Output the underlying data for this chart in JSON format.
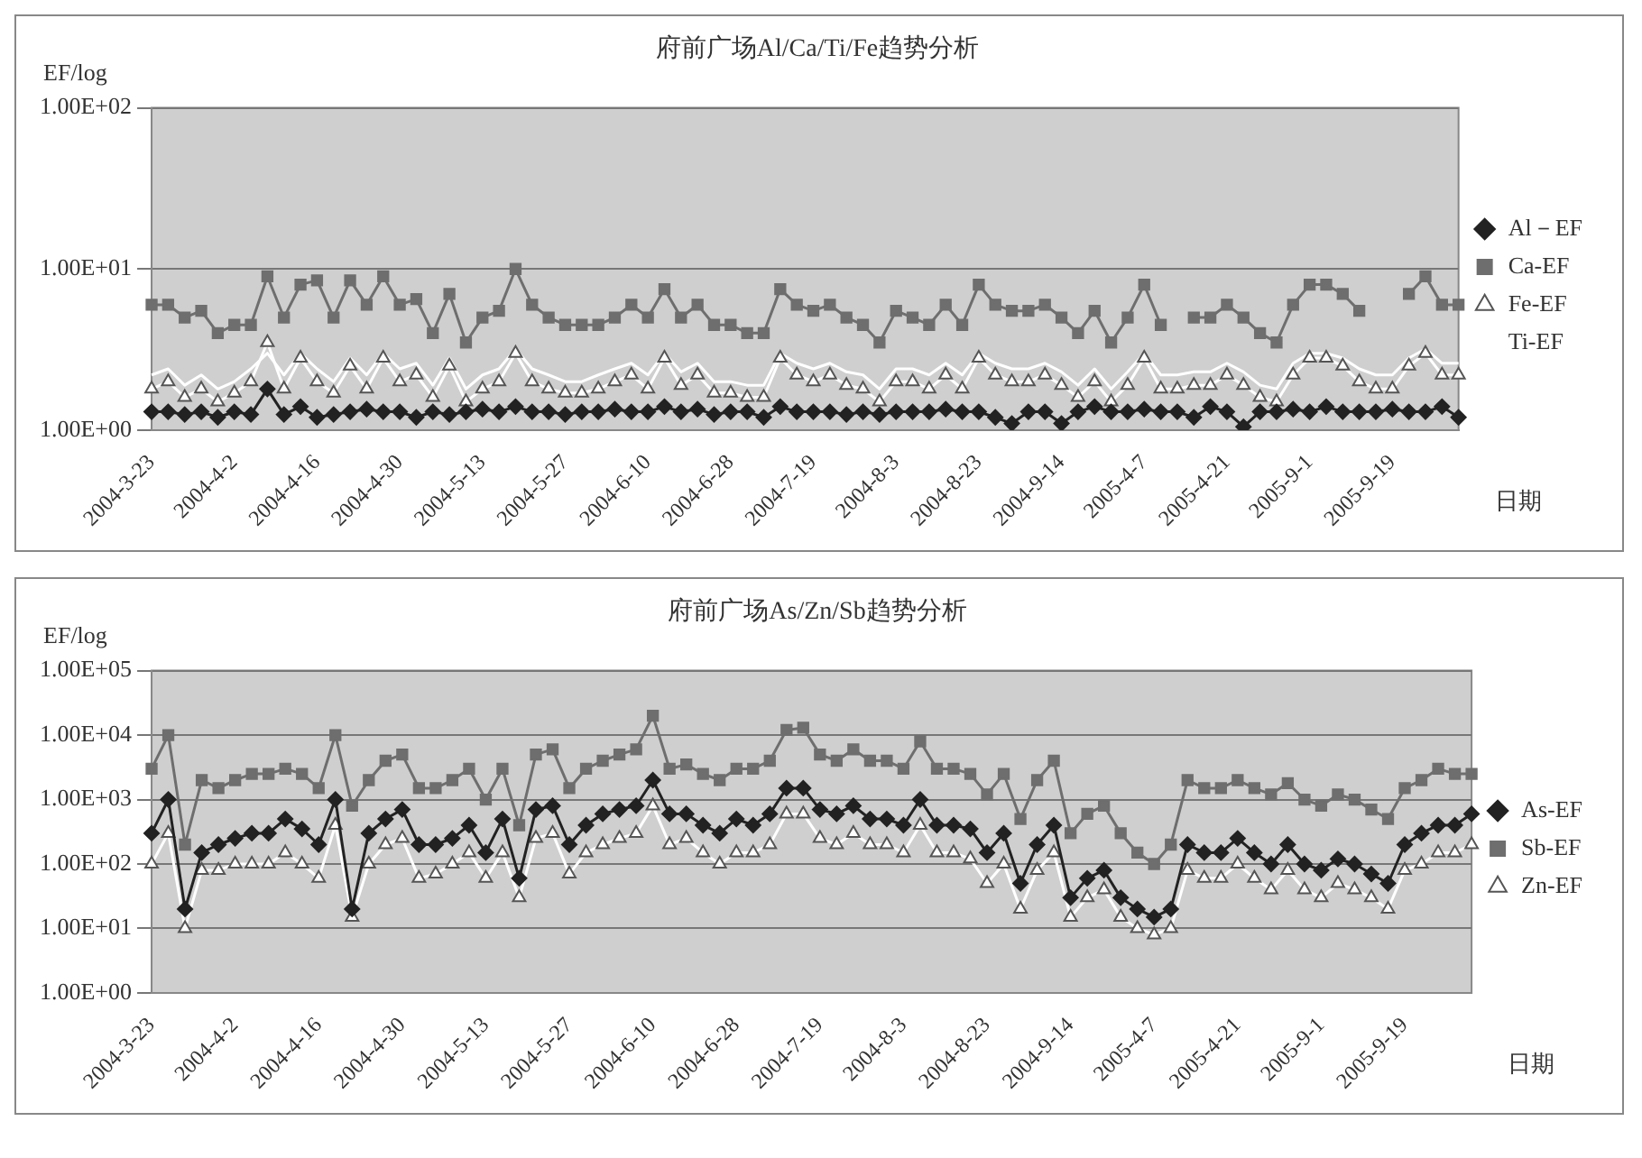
{
  "chart_data": [
    {
      "type": "line",
      "title": "府前广场Al/Ca/Ti/Fe趋势分析",
      "ylabel": "EF/log",
      "xlabel": "日期",
      "log": "y",
      "grid": "y",
      "legend": "right",
      "categories": [
        "2004-3-23",
        null,
        null,
        null,
        null,
        "2004-4-2",
        null,
        null,
        null,
        null,
        "2004-4-16",
        null,
        null,
        null,
        null,
        "2004-4-30",
        null,
        null,
        null,
        null,
        "2004-5-13",
        null,
        null,
        null,
        null,
        "2004-5-27",
        null,
        null,
        null,
        null,
        "2004-6-10",
        null,
        null,
        null,
        null,
        "2004-6-28",
        null,
        null,
        null,
        null,
        "2004-7-19",
        null,
        null,
        null,
        null,
        "2004-8-3",
        null,
        null,
        null,
        null,
        "2004-8-23",
        null,
        null,
        null,
        null,
        "2004-9-14",
        null,
        null,
        null,
        null,
        "2005-4-7",
        null,
        null,
        null,
        null,
        "2005-4-21",
        null,
        null,
        null,
        null,
        "2005-9-1",
        null,
        null,
        null,
        null,
        "2005-9-19",
        null,
        null,
        null,
        null
      ],
      "ylim": [
        1,
        100
      ],
      "yticks": [
        {
          "value": 1,
          "label": "1.00E+00"
        },
        {
          "value": 10,
          "label": "1.00E+01"
        },
        {
          "value": 100,
          "label": "1.00E+02"
        }
      ],
      "series": [
        {
          "name": "Al－EF",
          "color": "#222222",
          "marker": "diamond",
          "values": [
            1.3,
            1.3,
            1.25,
            1.3,
            1.2,
            1.3,
            1.25,
            1.8,
            1.25,
            1.4,
            1.2,
            1.25,
            1.3,
            1.35,
            1.3,
            1.3,
            1.2,
            1.3,
            1.25,
            1.3,
            1.35,
            1.3,
            1.4,
            1.3,
            1.3,
            1.25,
            1.3,
            1.3,
            1.35,
            1.3,
            1.3,
            1.4,
            1.3,
            1.35,
            1.25,
            1.3,
            1.3,
            1.2,
            1.4,
            1.3,
            1.3,
            1.3,
            1.25,
            1.3,
            1.25,
            1.3,
            1.3,
            1.3,
            1.35,
            1.3,
            1.3,
            1.2,
            1.1,
            1.3,
            1.3,
            1.1,
            1.3,
            1.4,
            1.3,
            1.3,
            1.35,
            1.3,
            1.3,
            1.2,
            1.4,
            1.3,
            1.05,
            1.3,
            1.3,
            1.35,
            1.3,
            1.4,
            1.3,
            1.3,
            1.3,
            1.35,
            1.3,
            1.3,
            1.4,
            1.2
          ]
        },
        {
          "name": "Ca-EF",
          "color": "#6e6e6e",
          "marker": "square",
          "values": [
            6,
            6,
            5,
            5.5,
            4,
            4.5,
            4.5,
            9,
            5,
            8,
            8.5,
            5,
            8.5,
            6,
            9,
            6,
            6.5,
            4,
            7,
            3.5,
            5,
            5.5,
            10,
            6,
            5,
            4.5,
            4.5,
            4.5,
            5,
            6,
            5,
            7.5,
            5,
            6,
            4.5,
            4.5,
            4,
            4,
            7.5,
            6,
            5.5,
            6,
            5,
            4.5,
            3.5,
            5.5,
            5,
            4.5,
            6,
            4.5,
            8,
            6,
            5.5,
            5.5,
            6,
            5,
            4,
            5.5,
            3.5,
            5,
            8,
            4.5,
            null,
            5,
            5,
            6,
            5,
            4,
            3.5,
            6,
            8,
            8,
            7,
            5.5,
            null,
            null,
            7,
            9,
            6,
            6
          ]
        },
        {
          "name": "Fe-EF",
          "color": "#ffffff",
          "marker": "triangle",
          "values": [
            1.8,
            2,
            1.6,
            1.8,
            1.5,
            1.7,
            2,
            3.5,
            1.8,
            2.8,
            2,
            1.7,
            2.5,
            1.8,
            2.8,
            2,
            2.2,
            1.6,
            2.5,
            1.5,
            1.8,
            2,
            3,
            2,
            1.8,
            1.7,
            1.7,
            1.8,
            2,
            2.2,
            1.8,
            2.8,
            1.9,
            2.2,
            1.7,
            1.7,
            1.6,
            1.6,
            2.8,
            2.2,
            2,
            2.2,
            1.9,
            1.8,
            1.5,
            2,
            2,
            1.8,
            2.2,
            1.8,
            2.8,
            2.2,
            2,
            2,
            2.2,
            1.9,
            1.6,
            2,
            1.5,
            1.9,
            2.8,
            1.8,
            1.8,
            1.9,
            1.9,
            2.2,
            1.9,
            1.6,
            1.5,
            2.2,
            2.8,
            2.8,
            2.5,
            2,
            1.8,
            1.8,
            2.5,
            3,
            2.2,
            2.2
          ]
        },
        {
          "name": "Ti-EF",
          "color": "#ffffff",
          "marker": "none",
          "values": [
            2.2,
            2.4,
            1.9,
            2.2,
            1.8,
            2,
            2.4,
            3,
            2.2,
            3,
            2.4,
            2,
            2.8,
            2.2,
            3,
            2.4,
            2.6,
            1.9,
            2.8,
            1.8,
            2.2,
            2.4,
            3.2,
            2.4,
            2.2,
            2,
            2,
            2.2,
            2.4,
            2.6,
            2.2,
            3,
            2.3,
            2.6,
            2,
            2,
            1.9,
            1.9,
            3,
            2.6,
            2.4,
            2.6,
            2.3,
            2.2,
            1.8,
            2.4,
            2.4,
            2.2,
            2.6,
            2.2,
            3,
            2.6,
            2.4,
            2.4,
            2.6,
            2.3,
            1.9,
            2.4,
            1.8,
            2.3,
            3,
            2.2,
            2.2,
            2.3,
            2.3,
            2.6,
            2.3,
            1.9,
            1.8,
            2.6,
            3,
            3,
            2.8,
            2.4,
            2.2,
            2.2,
            2.8,
            3.2,
            2.6,
            2.6
          ]
        }
      ]
    },
    {
      "type": "line",
      "title": "府前广场As/Zn/Sb趋势分析",
      "ylabel": "EF/log",
      "xlabel": "日期",
      "log": "y",
      "grid": "y",
      "legend": "right",
      "categories": [
        "2004-3-23",
        null,
        null,
        null,
        null,
        "2004-4-2",
        null,
        null,
        null,
        null,
        "2004-4-16",
        null,
        null,
        null,
        null,
        "2004-4-30",
        null,
        null,
        null,
        null,
        "2004-5-13",
        null,
        null,
        null,
        null,
        "2004-5-27",
        null,
        null,
        null,
        null,
        "2004-6-10",
        null,
        null,
        null,
        null,
        "2004-6-28",
        null,
        null,
        null,
        null,
        "2004-7-19",
        null,
        null,
        null,
        null,
        "2004-8-3",
        null,
        null,
        null,
        null,
        "2004-8-23",
        null,
        null,
        null,
        null,
        "2004-9-14",
        null,
        null,
        null,
        null,
        "2005-4-7",
        null,
        null,
        null,
        null,
        "2005-4-21",
        null,
        null,
        null,
        null,
        "2005-9-1",
        null,
        null,
        null,
        null,
        "2005-9-19",
        null,
        null,
        null,
        null
      ],
      "ylim": [
        1,
        100000
      ],
      "yticks": [
        {
          "value": 1,
          "label": "1.00E+00"
        },
        {
          "value": 10,
          "label": "1.00E+01"
        },
        {
          "value": 100,
          "label": "1.00E+02"
        },
        {
          "value": 1000,
          "label": "1.00E+03"
        },
        {
          "value": 10000,
          "label": "1.00E+04"
        },
        {
          "value": 100000,
          "label": "1.00E+05"
        }
      ],
      "series": [
        {
          "name": "As-EF",
          "color": "#222222",
          "marker": "diamond",
          "values": [
            300,
            1000,
            20,
            150,
            200,
            250,
            300,
            300,
            500,
            350,
            200,
            1000,
            20,
            300,
            500,
            700,
            200,
            200,
            250,
            400,
            150,
            500,
            60,
            700,
            800,
            200,
            400,
            600,
            700,
            800,
            2000,
            600,
            600,
            400,
            300,
            500,
            400,
            600,
            1500,
            1500,
            700,
            600,
            800,
            500,
            500,
            400,
            1000,
            400,
            400,
            350,
            150,
            300,
            50,
            200,
            400,
            30,
            60,
            80,
            30,
            20,
            15,
            20,
            200,
            150,
            150,
            250,
            150,
            100,
            200,
            100,
            80,
            120,
            100,
            70,
            50,
            200,
            300,
            400,
            400,
            600
          ]
        },
        {
          "name": "Sb-EF",
          "color": "#6e6e6e",
          "marker": "square",
          "values": [
            3000,
            10000,
            200,
            2000,
            1500,
            2000,
            2500,
            2500,
            3000,
            2500,
            1500,
            10000,
            800,
            2000,
            4000,
            5000,
            1500,
            1500,
            2000,
            3000,
            1000,
            3000,
            400,
            5000,
            6000,
            1500,
            3000,
            4000,
            5000,
            6000,
            20000,
            3000,
            3500,
            2500,
            2000,
            3000,
            3000,
            4000,
            12000,
            13000,
            5000,
            4000,
            6000,
            4000,
            4000,
            3000,
            8000,
            3000,
            3000,
            2500,
            1200,
            2500,
            500,
            2000,
            4000,
            300,
            600,
            800,
            300,
            150,
            100,
            200,
            2000,
            1500,
            1500,
            2000,
            1500,
            1200,
            1800,
            1000,
            800,
            1200,
            1000,
            700,
            500,
            1500,
            2000,
            3000,
            2500,
            2500
          ]
        },
        {
          "name": "Zn-EF",
          "color": "#ffffff",
          "marker": "triangle",
          "values": [
            100,
            300,
            10,
            80,
            80,
            100,
            100,
            100,
            150,
            100,
            60,
            400,
            15,
            100,
            200,
            250,
            60,
            70,
            100,
            150,
            60,
            150,
            30,
            250,
            300,
            70,
            150,
            200,
            250,
            300,
            800,
            200,
            250,
            150,
            100,
            150,
            150,
            200,
            600,
            600,
            250,
            200,
            300,
            200,
            200,
            150,
            400,
            150,
            150,
            120,
            50,
            100,
            20,
            80,
            150,
            15,
            30,
            40,
            15,
            10,
            8,
            10,
            80,
            60,
            60,
            100,
            60,
            40,
            80,
            40,
            30,
            50,
            40,
            30,
            20,
            80,
            100,
            150,
            150,
            200
          ]
        }
      ]
    }
  ]
}
